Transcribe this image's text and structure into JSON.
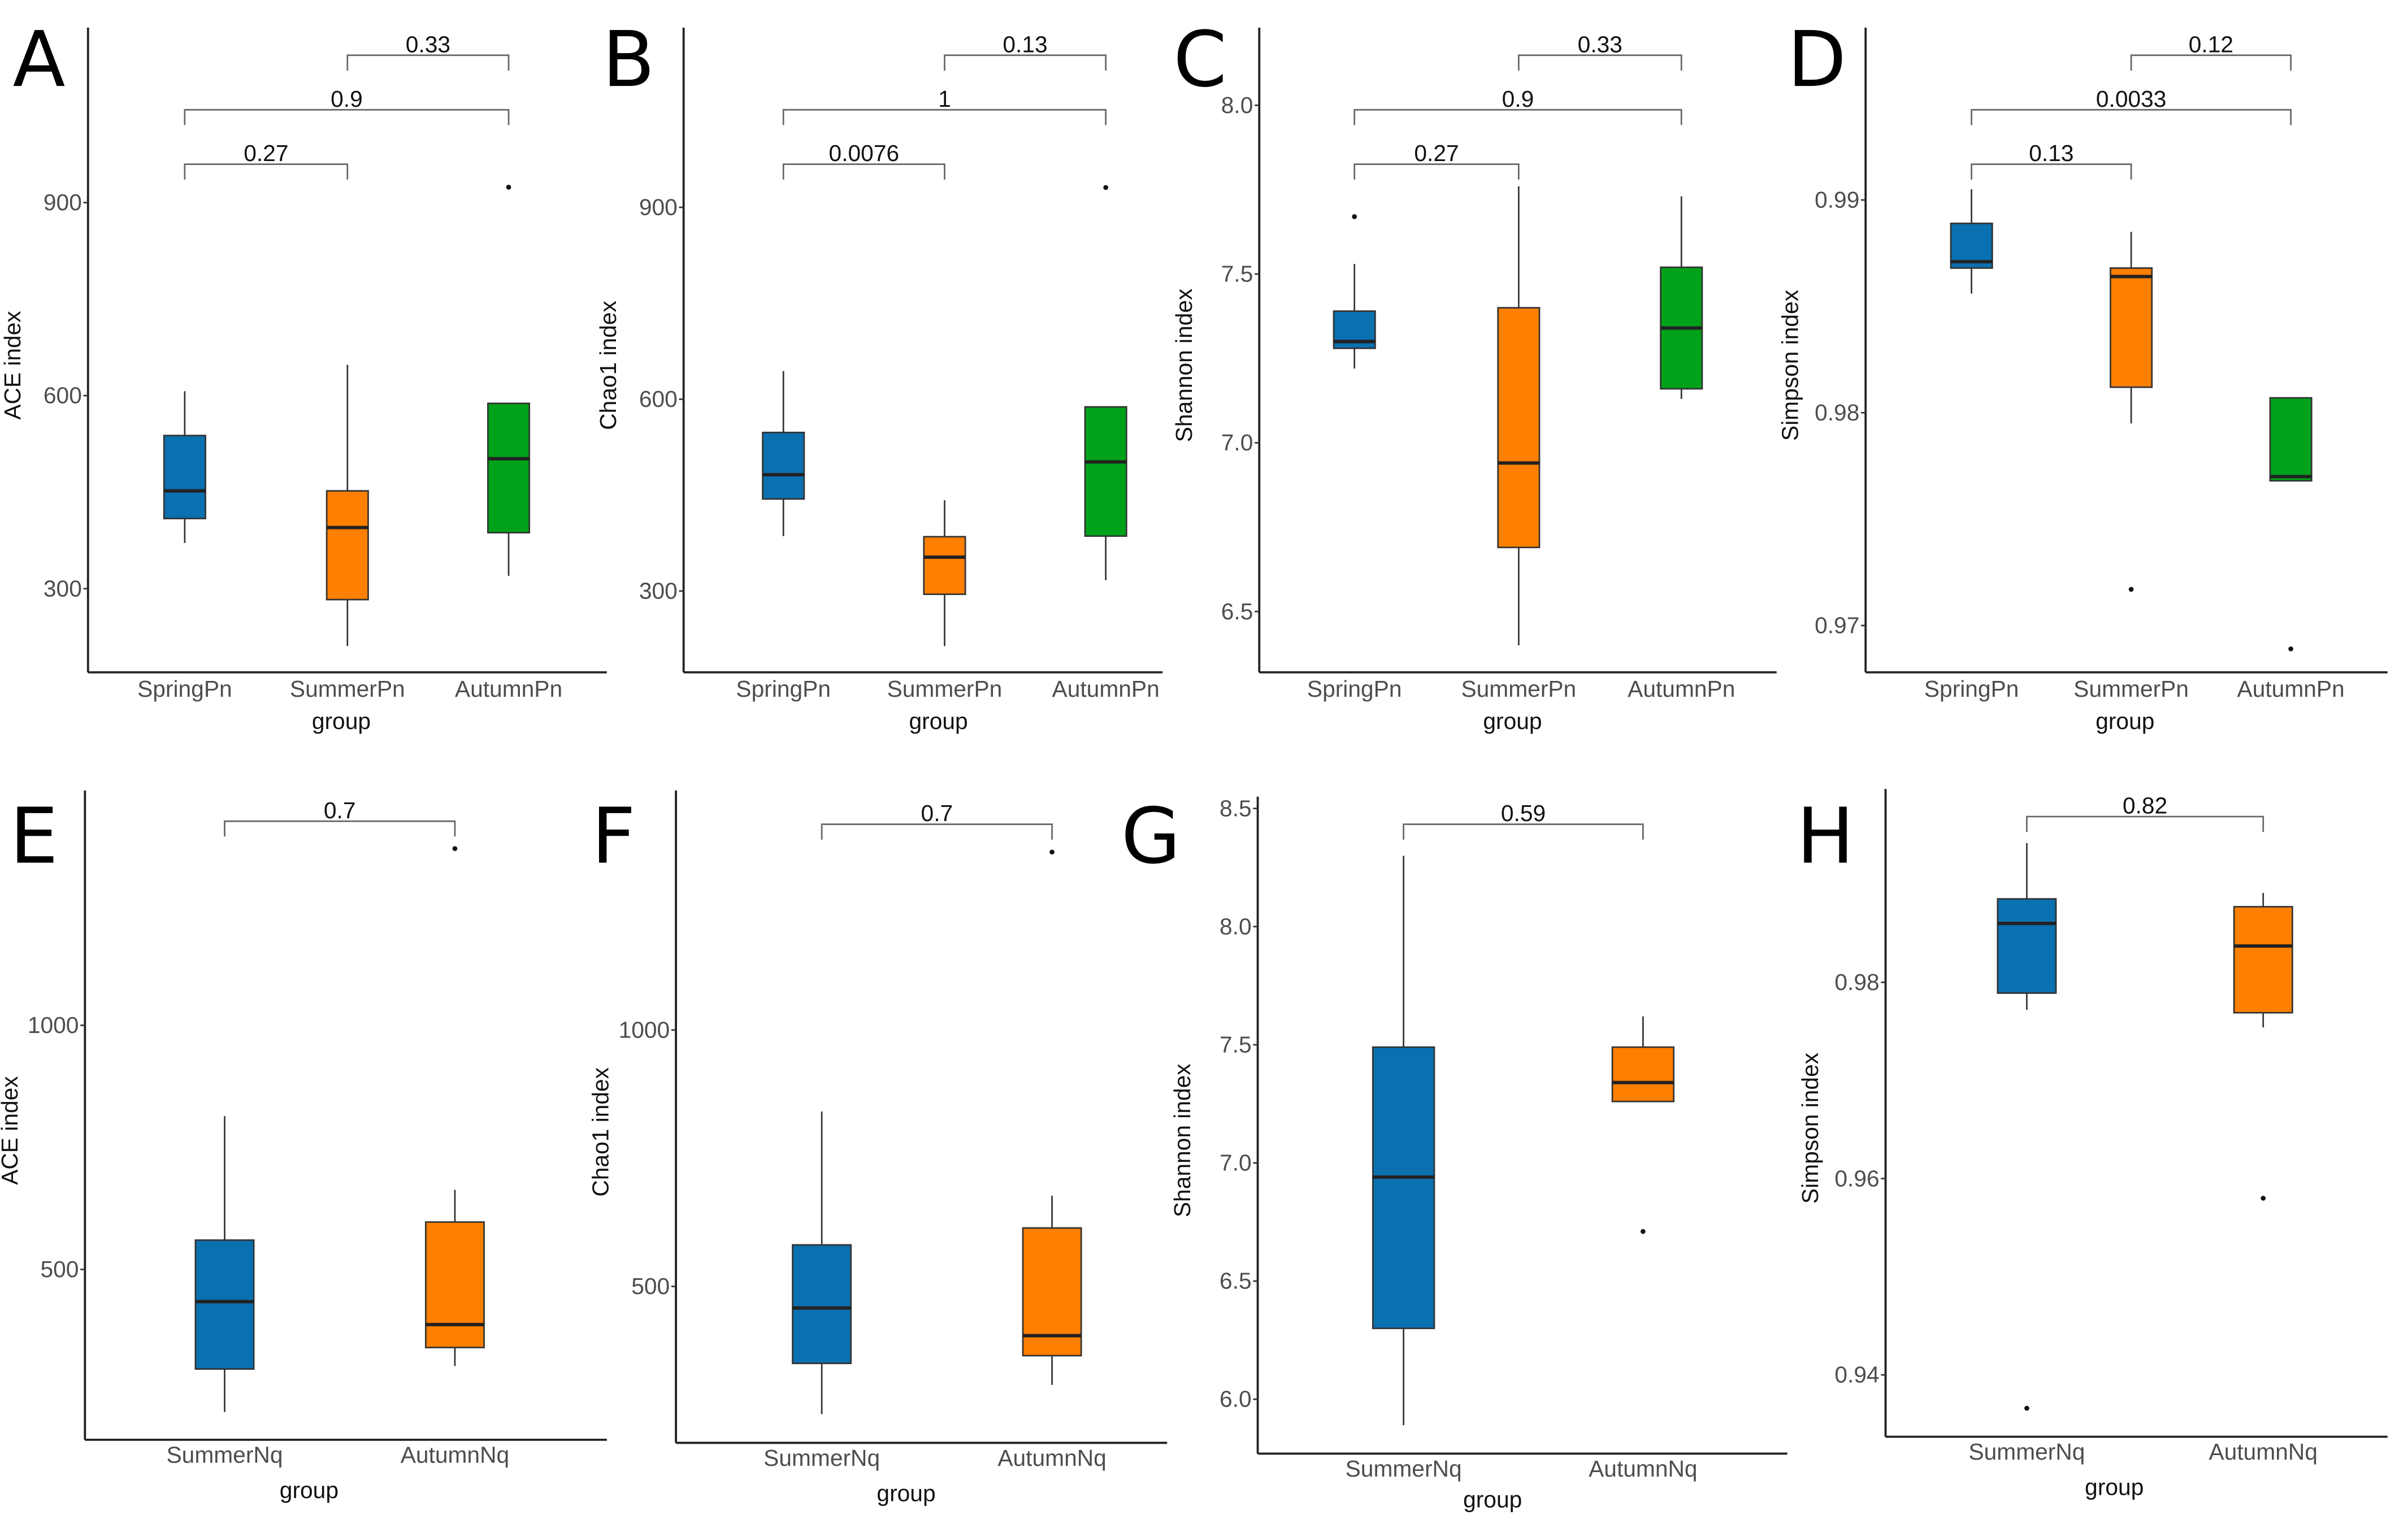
{
  "chart_data": [
    {
      "panel": "A",
      "type": "boxplot",
      "ylabel": "ACE index",
      "xlabel": "group",
      "ylim": [
        170,
        1172
      ],
      "yticks": [
        300,
        600,
        900
      ],
      "categories": [
        "SpringPn",
        "SummerPn",
        "AutumnPn"
      ],
      "boxes": [
        {
          "min": 371,
          "q1": 409,
          "median": 452,
          "q3": 538,
          "max": 607,
          "outliers": []
        },
        {
          "min": 211,
          "q1": 283,
          "median": 395,
          "q3": 452,
          "max": 648,
          "outliers": []
        },
        {
          "min": 320,
          "q1": 387,
          "median": 502,
          "q3": 588,
          "max": 588,
          "outliers": [
            924
          ]
        }
      ],
      "comparisons": [
        {
          "pair": [
            0,
            1
          ],
          "p": "0.27"
        },
        {
          "pair": [
            0,
            2
          ],
          "p": "0.9"
        },
        {
          "pair": [
            1,
            2
          ],
          "p": "0.33"
        }
      ]
    },
    {
      "panel": "B",
      "type": "boxplot",
      "ylabel": "Chao1 index",
      "xlabel": "group",
      "ylim": [
        173,
        1181
      ],
      "yticks": [
        300,
        600,
        900
      ],
      "categories": [
        "SpringPn",
        "SummerPn",
        "AutumnPn"
      ],
      "boxes": [
        {
          "min": 386,
          "q1": 444,
          "median": 482,
          "q3": 548,
          "max": 644,
          "outliers": []
        },
        {
          "min": 214,
          "q1": 295,
          "median": 353,
          "q3": 385,
          "max": 442,
          "outliers": []
        },
        {
          "min": 317,
          "q1": 386,
          "median": 502,
          "q3": 588,
          "max": 588,
          "outliers": [
            931
          ]
        }
      ],
      "comparisons": [
        {
          "pair": [
            0,
            1
          ],
          "p": "0.0076"
        },
        {
          "pair": [
            0,
            2
          ],
          "p": "1"
        },
        {
          "pair": [
            1,
            2
          ],
          "p": "0.13"
        }
      ]
    },
    {
      "panel": "C",
      "type": "boxplot",
      "ylabel": "Shannon index",
      "xlabel": "group",
      "ylim": [
        6.32,
        8.23
      ],
      "yticks": [
        6.5,
        7.0,
        7.5,
        8.0
      ],
      "categories": [
        "SpringPn",
        "SummerPn",
        "AutumnPn"
      ],
      "boxes": [
        {
          "min": 7.22,
          "q1": 7.28,
          "median": 7.3,
          "q3": 7.39,
          "max": 7.53,
          "outliers": [
            7.67
          ]
        },
        {
          "min": 6.4,
          "q1": 6.69,
          "median": 6.94,
          "q3": 7.4,
          "max": 7.76,
          "outliers": []
        },
        {
          "min": 7.13,
          "q1": 7.16,
          "median": 7.34,
          "q3": 7.52,
          "max": 7.73,
          "outliers": []
        }
      ],
      "comparisons": [
        {
          "pair": [
            0,
            1
          ],
          "p": "0.27"
        },
        {
          "pair": [
            0,
            2
          ],
          "p": "0.9"
        },
        {
          "pair": [
            1,
            2
          ],
          "p": "0.33"
        }
      ]
    },
    {
      "panel": "D",
      "type": "boxplot",
      "ylabel": "Simpson index",
      "xlabel": "group",
      "ylim": [
        0.9678,
        0.9981
      ],
      "yticks": [
        0.97,
        0.98,
        0.99
      ],
      "categories": [
        "SpringPn",
        "SummerPn",
        "AutumnPn"
      ],
      "boxes": [
        {
          "min": 0.9856,
          "q1": 0.9868,
          "median": 0.9871,
          "q3": 0.9889,
          "max": 0.9905,
          "outliers": []
        },
        {
          "min": 0.9795,
          "q1": 0.9812,
          "median": 0.9864,
          "q3": 0.9868,
          "max": 0.9885,
          "outliers": [
            0.9717
          ]
        },
        {
          "min": 0.9768,
          "q1": 0.9768,
          "median": 0.977,
          "q3": 0.9807,
          "max": 0.9807,
          "outliers": [
            0.9689
          ]
        }
      ],
      "comparisons": [
        {
          "pair": [
            0,
            1
          ],
          "p": "0.13"
        },
        {
          "pair": [
            0,
            2
          ],
          "p": "0.0033"
        },
        {
          "pair": [
            1,
            2
          ],
          "p": "0.12"
        }
      ]
    },
    {
      "panel": "E",
      "type": "boxplot",
      "ylabel": "ACE index",
      "xlabel": "group",
      "ylim": [
        151,
        1481
      ],
      "yticks": [
        500,
        1000
      ],
      "categories": [
        "SummerNq",
        "AutumnNq"
      ],
      "boxes": [
        {
          "min": 208,
          "q1": 296,
          "median": 434,
          "q3": 560,
          "max": 814,
          "outliers": []
        },
        {
          "min": 302,
          "q1": 340,
          "median": 387,
          "q3": 597,
          "max": 663,
          "outliers": [
            1362
          ]
        }
      ],
      "comparisons": [
        {
          "pair": [
            0,
            1
          ],
          "p": "0.7"
        }
      ]
    },
    {
      "panel": "F",
      "type": "boxplot",
      "ylabel": "Chao1 index",
      "xlabel": "group",
      "ylim": [
        195,
        1467
      ],
      "yticks": [
        500,
        1000
      ],
      "categories": [
        "SummerNq",
        "AutumnNq"
      ],
      "boxes": [
        {
          "min": 251,
          "q1": 350,
          "median": 458,
          "q3": 581,
          "max": 841,
          "outliers": []
        },
        {
          "min": 308,
          "q1": 365,
          "median": 404,
          "q3": 614,
          "max": 677,
          "outliers": [
            1347
          ]
        }
      ],
      "comparisons": [
        {
          "pair": [
            0,
            1
          ],
          "p": "0.7"
        }
      ]
    },
    {
      "panel": "G",
      "type": "boxplot",
      "ylabel": "Shannon index",
      "xlabel": "group",
      "ylim": [
        5.77,
        8.55
      ],
      "yticks": [
        6.0,
        6.5,
        7.0,
        7.5,
        8.0,
        8.5
      ],
      "categories": [
        "SummerNq",
        "AutumnNq"
      ],
      "boxes": [
        {
          "min": 5.89,
          "q1": 6.3,
          "median": 6.94,
          "q3": 7.49,
          "max": 8.3,
          "outliers": []
        },
        {
          "min": 7.26,
          "q1": 7.26,
          "median": 7.34,
          "q3": 7.49,
          "max": 7.62,
          "outliers": [
            6.71
          ]
        }
      ],
      "comparisons": [
        {
          "pair": [
            0,
            1
          ],
          "p": "0.59"
        }
      ]
    },
    {
      "panel": "H",
      "type": "boxplot",
      "ylabel": "Simpson index",
      "xlabel": "group",
      "ylim": [
        0.9337,
        0.9997
      ],
      "yticks": [
        0.94,
        0.96,
        0.98
      ],
      "categories": [
        "SummerNq",
        "AutumnNq"
      ],
      "boxes": [
        {
          "min": 0.9772,
          "q1": 0.9789,
          "median": 0.986,
          "q3": 0.9885,
          "max": 0.9942,
          "outliers": [
            0.9366
          ]
        },
        {
          "min": 0.9754,
          "q1": 0.9769,
          "median": 0.9837,
          "q3": 0.9877,
          "max": 0.9891,
          "outliers": [
            0.958
          ]
        }
      ],
      "comparisons": [
        {
          "pair": [
            0,
            1
          ],
          "p": "0.82"
        }
      ]
    }
  ],
  "colors": {
    "three_group": [
      "#0a70b0",
      "#ff7f00",
      "#00a21a"
    ],
    "two_group": [
      "#0a70b0",
      "#ff7f00"
    ],
    "outline": "#333333",
    "median": "#222222"
  }
}
